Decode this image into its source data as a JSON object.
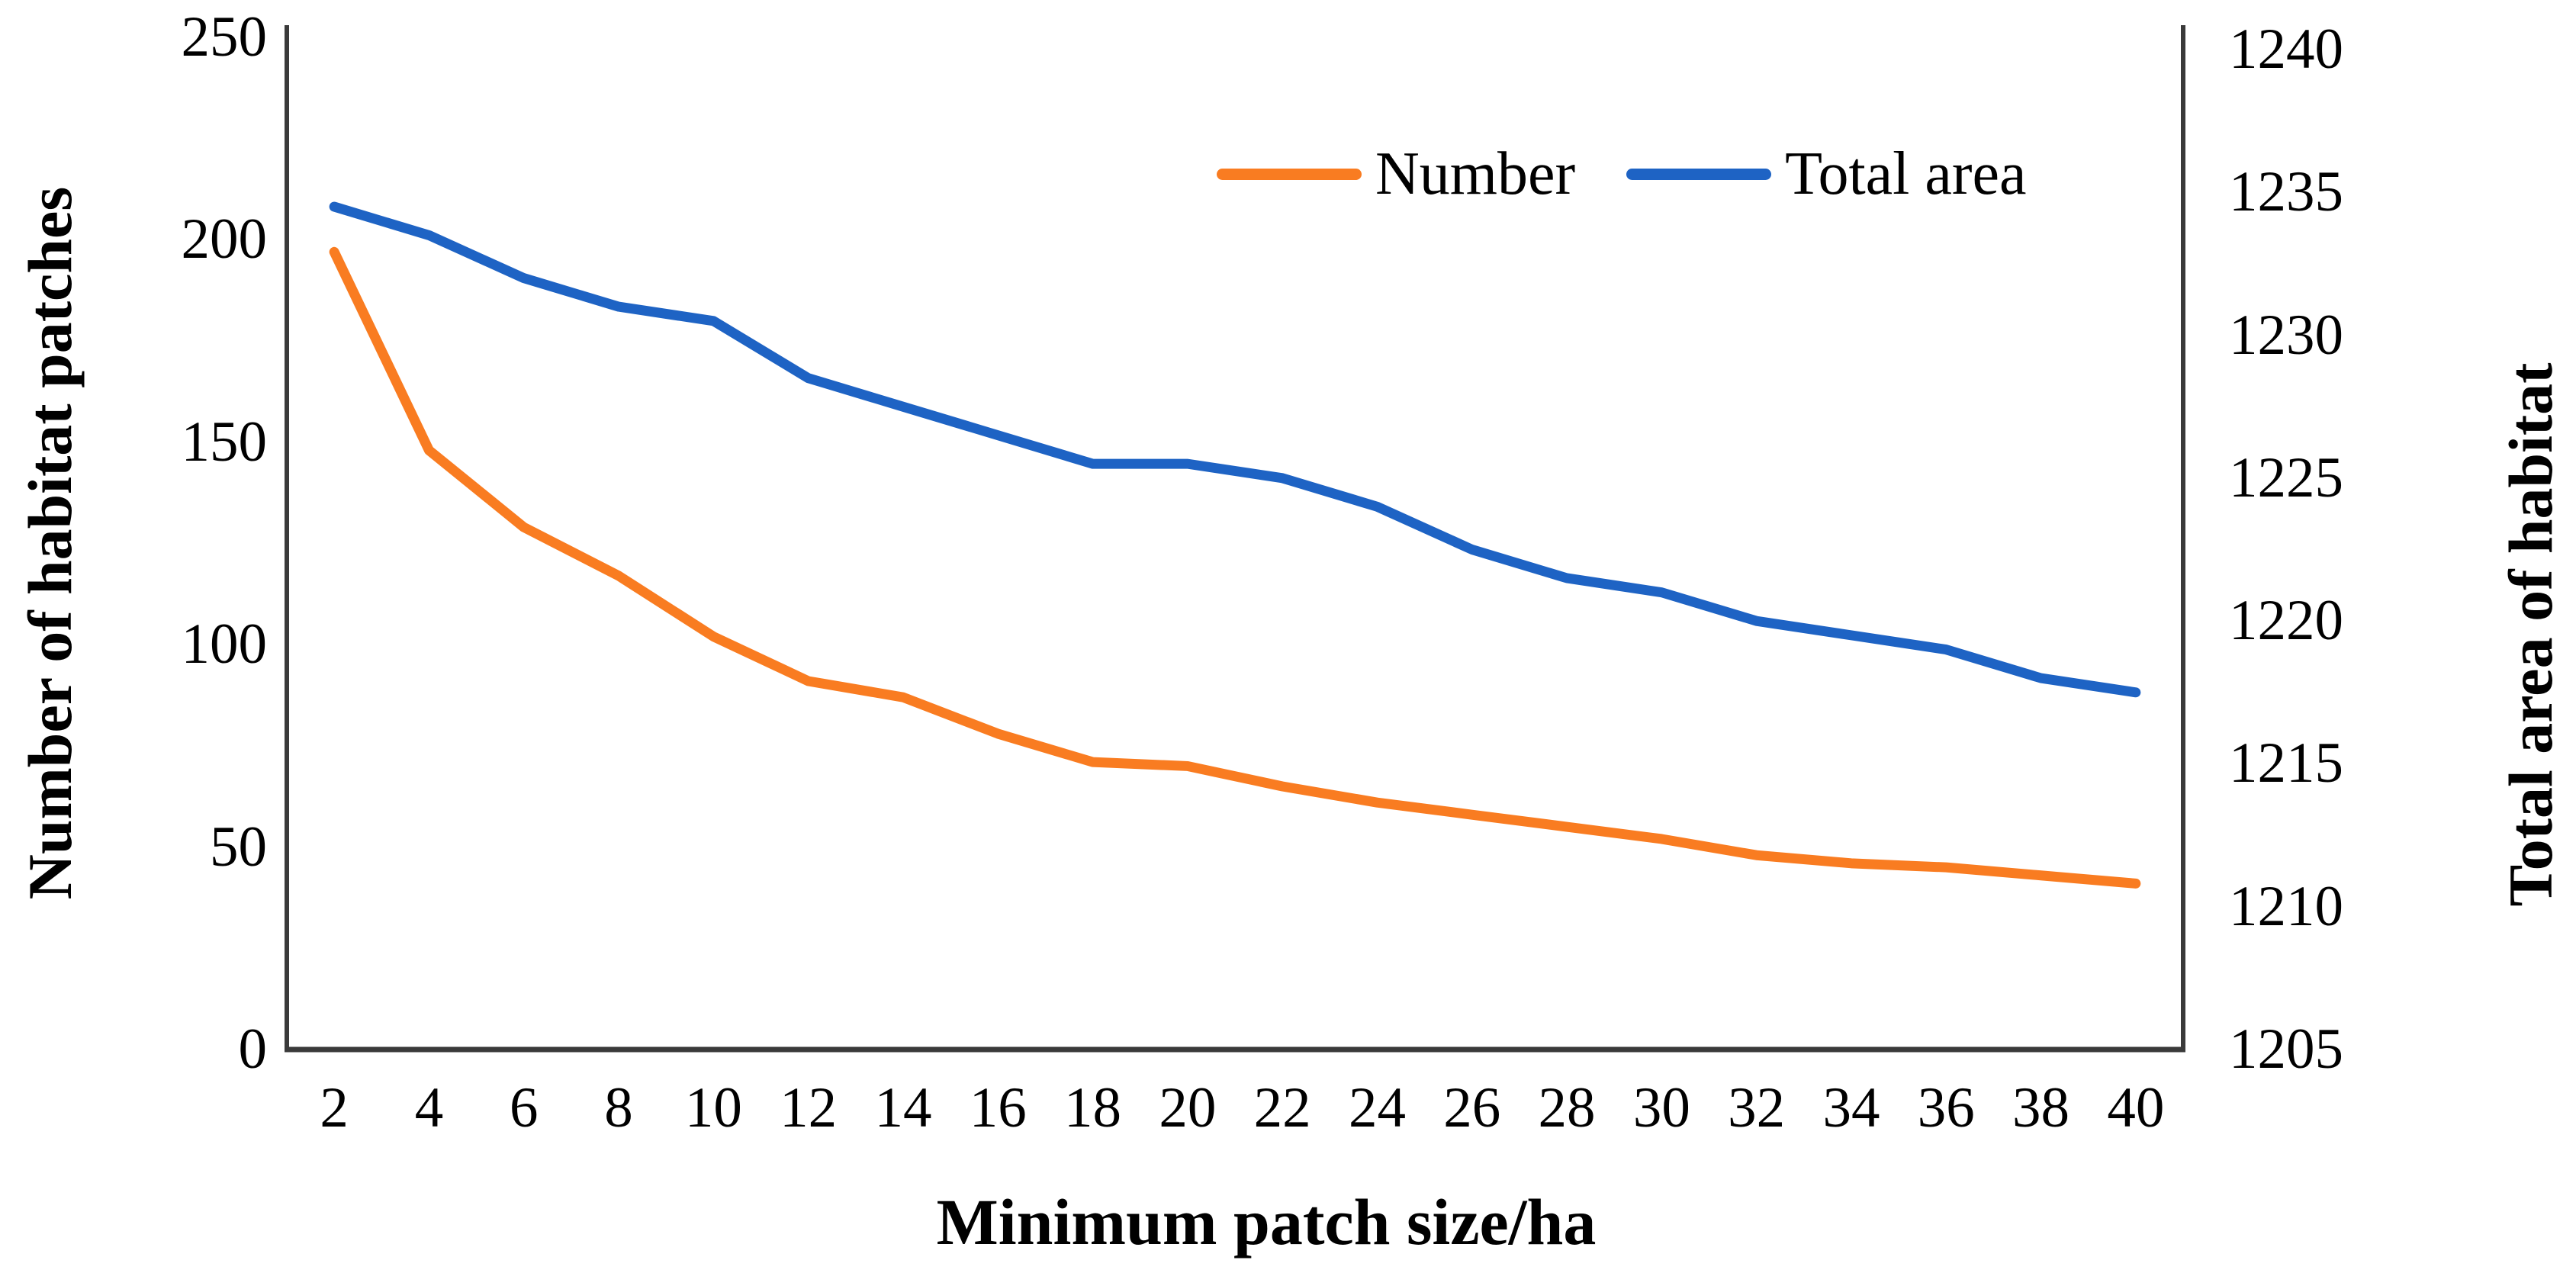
{
  "chart_data": {
    "type": "line",
    "title": "",
    "xlabel": "Minimum patch size/ha",
    "ylabel_left": "Number of habitat patches",
    "ylabel_right": "Total area of habitat",
    "categories": [
      2,
      4,
      6,
      8,
      10,
      12,
      14,
      16,
      18,
      20,
      22,
      24,
      26,
      28,
      30,
      32,
      34,
      36,
      38,
      40
    ],
    "y_left_ticks": [
      0,
      50,
      100,
      150,
      200,
      250
    ],
    "y_right_ticks": [
      1205,
      1210,
      1215,
      1220,
      1225,
      1230,
      1235,
      1240
    ],
    "ylim_left": [
      0,
      250
    ],
    "ylim_right": [
      1205,
      1240
    ],
    "grid": false,
    "legend_position": "inside-top-right",
    "series": [
      {
        "name": "Number",
        "axis": "left",
        "color": "#F97C21",
        "values": [
          197,
          148,
          129,
          117,
          102,
          91,
          87,
          78,
          71,
          70,
          65,
          61,
          58,
          55,
          52,
          48,
          46,
          45,
          43,
          41
        ]
      },
      {
        "name": "Total area",
        "axis": "right",
        "color": "#1E63C4",
        "values": [
          1234.5,
          1233.5,
          1232,
          1231,
          1230.5,
          1228.5,
          1227.5,
          1226.5,
          1225.5,
          1225.5,
          1225,
          1224,
          1222.5,
          1221.5,
          1221,
          1220,
          1219.5,
          1219,
          1218,
          1217.5
        ]
      }
    ]
  },
  "axis_color": "#3A3A3A",
  "text_color": "#000000"
}
